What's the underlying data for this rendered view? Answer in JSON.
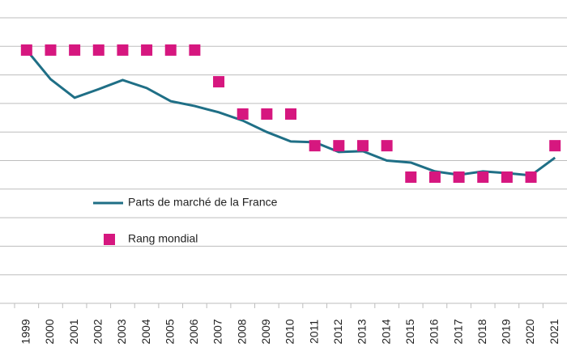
{
  "chart_data": {
    "type": "line",
    "categories": [
      "1999",
      "2000",
      "2001",
      "2002",
      "2003",
      "2004",
      "2005",
      "2006",
      "2007",
      "2008",
      "2009",
      "2010",
      "2011",
      "2012",
      "2013",
      "2014",
      "2015",
      "2016",
      "2017",
      "2018",
      "2019",
      "2020",
      "2021"
    ],
    "series": [
      {
        "name": "Parts de marché de la France",
        "color": "#1f6f86",
        "style": "line",
        "values": [
          8.87,
          7.85,
          7.2,
          7.5,
          7.82,
          7.54,
          7.08,
          6.91,
          6.69,
          6.4,
          6.0,
          5.67,
          5.64,
          5.3,
          5.33,
          5.0,
          4.93,
          4.62,
          4.5,
          4.62,
          4.56,
          4.48,
          5.1
        ]
      },
      {
        "name": "Rang mondial",
        "color": "#d6177f",
        "style": "square",
        "values": [
          8.87,
          8.87,
          8.87,
          8.87,
          8.87,
          8.87,
          8.87,
          8.87,
          7.76,
          6.63,
          6.63,
          6.63,
          5.52,
          5.52,
          5.52,
          5.52,
          4.42,
          4.42,
          4.42,
          4.42,
          4.42,
          4.42,
          5.52
        ]
      }
    ],
    "ylim": [
      0,
      10
    ],
    "yticks": [
      0,
      1,
      2,
      3,
      4,
      5,
      6,
      7,
      8,
      9,
      10
    ],
    "grid": true
  }
}
